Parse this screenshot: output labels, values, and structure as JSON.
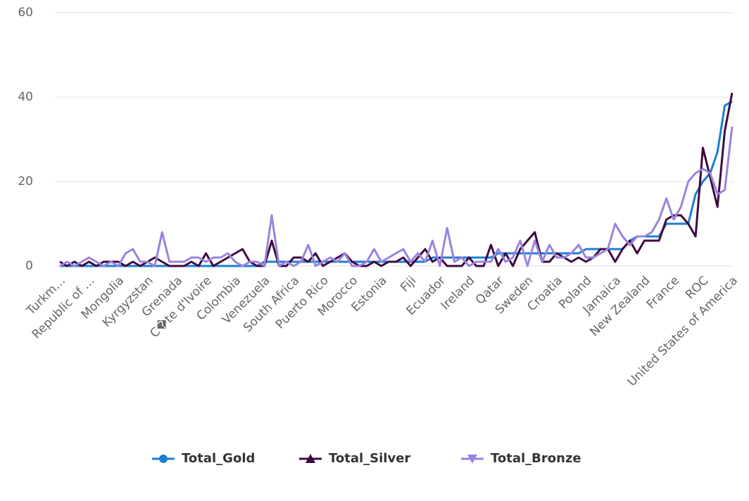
{
  "chart_data": {
    "type": "line",
    "categories": [
      "Turkm…",
      null,
      null,
      null,
      "Republic of …",
      null,
      null,
      null,
      "Mongolia",
      null,
      null,
      null,
      "Kyrgyzstan",
      null,
      null,
      null,
      "Grenada",
      null,
      null,
      null,
      "C�te d'Ivoire",
      null,
      null,
      null,
      "Colombia",
      null,
      null,
      null,
      "Venezuela",
      null,
      null,
      null,
      "South Africa",
      null,
      null,
      null,
      "Puerto Rico",
      null,
      null,
      null,
      "Morocco",
      null,
      null,
      null,
      "Estonia",
      null,
      null,
      null,
      "Fiji",
      null,
      null,
      null,
      "Ecuador",
      null,
      null,
      null,
      "Ireland",
      null,
      null,
      null,
      "Qatar",
      null,
      null,
      null,
      "Sweden",
      null,
      null,
      null,
      "Croatia",
      null,
      null,
      null,
      "Poland",
      null,
      null,
      null,
      "Jamaica",
      null,
      null,
      null,
      "New Zealand",
      null,
      null,
      null,
      "France",
      null,
      null,
      null,
      "ROC",
      null,
      null,
      null,
      "United States of America"
    ],
    "series": [
      {
        "name": "Total_Gold",
        "color": "#1a7fd1",
        "marker": "circle",
        "values": [
          0,
          0,
          0,
          0,
          0,
          0,
          0,
          0,
          0,
          0,
          0,
          0,
          0,
          0,
          0,
          0,
          0,
          0,
          0,
          0,
          0,
          0,
          0,
          0,
          0,
          0,
          0,
          0,
          1,
          1,
          1,
          1,
          1,
          1,
          1,
          1,
          1,
          1,
          1,
          1,
          1,
          1,
          1,
          1,
          1,
          1,
          1,
          1,
          1,
          1,
          1,
          2,
          2,
          2,
          2,
          2,
          2,
          2,
          2,
          2,
          3,
          3,
          3,
          3,
          3,
          3,
          3,
          3,
          3,
          3,
          3,
          3,
          4,
          4,
          4,
          4,
          4,
          4,
          6,
          7,
          7,
          7,
          7,
          10,
          10,
          10,
          10,
          17,
          20,
          22,
          27,
          38,
          39
        ]
      },
      {
        "name": "Total_Silver",
        "color": "#3d0a3f",
        "marker": "triangle-up",
        "values": [
          1,
          0,
          1,
          0,
          1,
          0,
          1,
          1,
          1,
          0,
          1,
          0,
          1,
          2,
          1,
          0,
          0,
          0,
          1,
          0,
          3,
          0,
          1,
          2,
          3,
          4,
          1,
          0,
          0,
          6,
          0,
          0,
          2,
          2,
          1,
          3,
          0,
          1,
          2,
          3,
          1,
          0,
          0,
          1,
          0,
          1,
          1,
          2,
          0,
          2,
          4,
          1,
          2,
          0,
          0,
          0,
          2,
          0,
          0,
          5,
          0,
          3,
          0,
          4,
          6,
          8,
          1,
          1,
          3,
          2,
          1,
          2,
          1,
          2,
          4,
          4,
          1,
          4,
          6,
          3,
          6,
          6,
          6,
          11,
          12,
          12,
          10,
          7,
          28,
          21,
          14,
          32,
          41
        ]
      },
      {
        "name": "Total_Bronze",
        "color": "#9b82e0",
        "marker": "triangle-down",
        "values": [
          0,
          1,
          0,
          1,
          2,
          1,
          0,
          1,
          0,
          3,
          4,
          1,
          1,
          0,
          8,
          1,
          1,
          1,
          2,
          2,
          1,
          2,
          2,
          3,
          1,
          0,
          1,
          1,
          0,
          12,
          0,
          1,
          0,
          1,
          5,
          0,
          1,
          2,
          1,
          3,
          0,
          0,
          1,
          4,
          1,
          2,
          3,
          4,
          1,
          3,
          1,
          6,
          0,
          9,
          1,
          2,
          0,
          1,
          1,
          1,
          4,
          1,
          2,
          6,
          0,
          6,
          1,
          5,
          2,
          2,
          3,
          5,
          2,
          2,
          3,
          4,
          10,
          7,
          5,
          7,
          7,
          8,
          11,
          16,
          11,
          14,
          20,
          22,
          23,
          22,
          17,
          18,
          33
        ]
      }
    ],
    "ylim": [
      0,
      60
    ],
    "yticks": [
      0,
      20,
      40,
      60
    ],
    "grid": true
  }
}
